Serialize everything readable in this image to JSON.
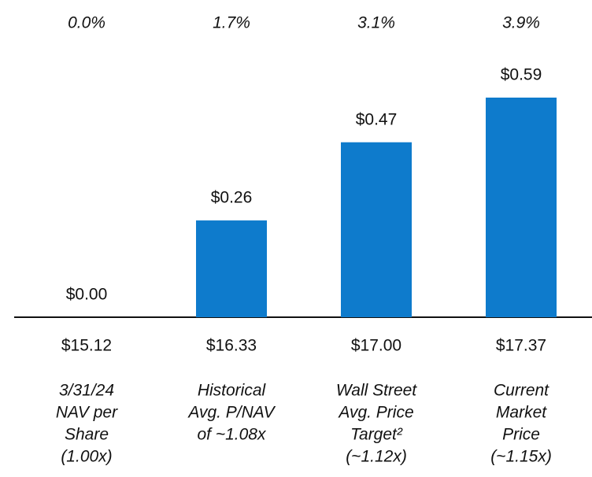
{
  "chart_data": {
    "type": "bar",
    "categories": [
      [
        "3/31/24",
        "NAV per",
        "Share",
        "(1.00x)"
      ],
      [
        "Historical",
        "Avg. P/NAV",
        "of ~1.08x"
      ],
      [
        "Wall Street",
        "Avg. Price",
        "Target²",
        "(~1.12x)"
      ],
      [
        "Current",
        "Market",
        "Price",
        "(~1.15x)"
      ]
    ],
    "values": [
      0,
      0.26,
      0.47,
      0.59
    ],
    "value_labels": [
      "$0.00",
      "$0.26",
      "$0.47",
      "$0.59"
    ],
    "percent_labels": [
      "0.0%",
      "1.7%",
      "3.1%",
      "3.9%"
    ],
    "price_labels": [
      "$15.12",
      "$16.33",
      "$17.00",
      "$17.37"
    ],
    "color": "#0e7bcc"
  }
}
